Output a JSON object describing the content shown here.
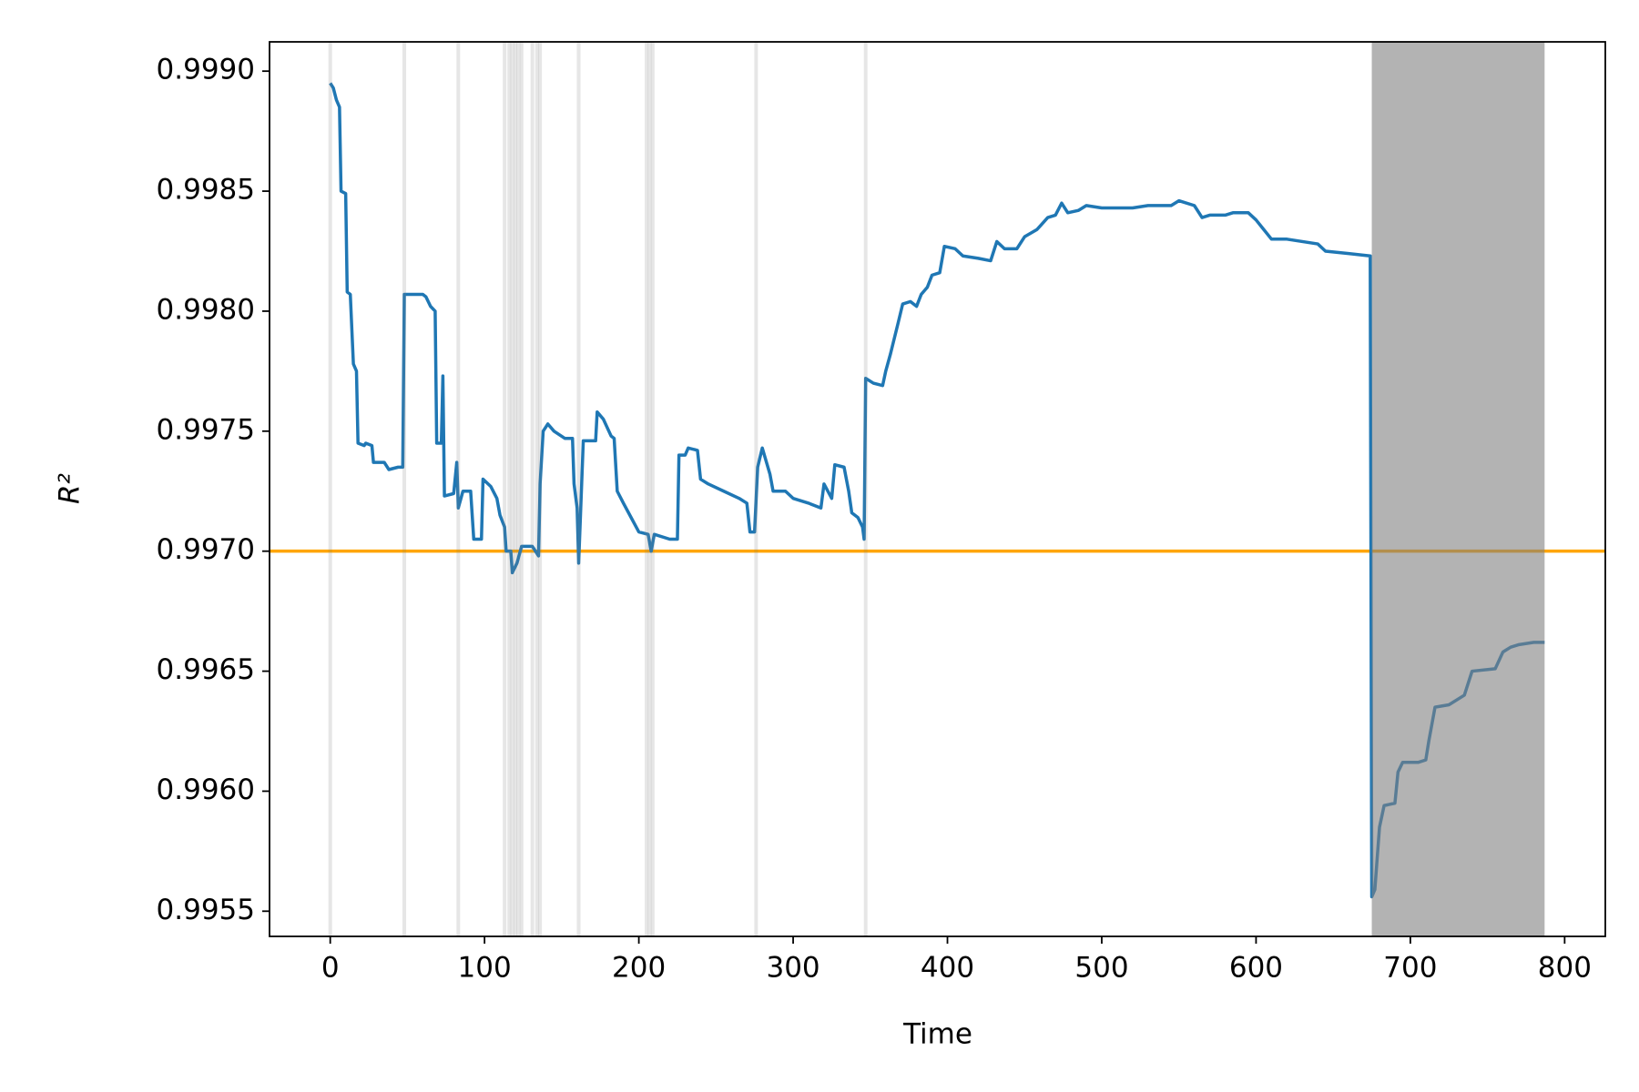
{
  "chart_data": {
    "type": "line",
    "xlabel": "Time",
    "ylabel": "R²",
    "x": [
      0,
      2,
      4,
      6,
      7,
      10,
      11,
      13,
      15,
      17,
      18,
      22,
      23,
      27,
      28,
      35,
      38,
      44,
      47,
      48,
      60,
      62,
      65,
      68,
      69,
      72,
      73,
      74,
      80,
      82,
      83,
      86,
      91,
      93,
      98,
      99,
      104,
      108,
      110,
      113,
      114,
      117,
      118,
      121,
      124,
      131,
      133,
      135,
      136,
      138,
      141,
      145,
      152,
      157,
      158,
      160,
      161,
      164,
      172,
      173,
      177,
      182,
      184,
      186,
      190,
      195,
      200,
      206,
      208,
      210,
      220,
      225,
      226,
      230,
      232,
      238,
      240,
      245,
      255,
      265,
      270,
      272,
      275,
      277,
      280,
      285,
      287,
      295,
      300,
      310,
      318,
      320,
      325,
      327,
      333,
      336,
      338,
      342,
      345,
      346,
      347,
      352,
      358,
      360,
      363,
      368,
      371,
      376,
      380,
      383,
      387,
      390,
      395,
      398,
      405,
      410,
      420,
      428,
      432,
      437,
      445,
      450,
      458,
      465,
      470,
      474,
      478,
      485,
      490,
      500,
      520,
      530,
      545,
      550,
      560,
      565,
      570,
      580,
      585,
      595,
      600,
      605,
      610,
      620,
      640,
      645,
      660,
      674,
      675,
      677,
      680,
      683,
      690,
      692,
      695,
      705,
      710,
      712,
      716,
      725,
      735,
      740,
      755,
      760,
      765,
      770,
      780,
      787
    ],
    "series": [
      {
        "color": "#1f77b4",
        "values": [
          0.99895,
          0.99893,
          0.99888,
          0.99885,
          0.9985,
          0.99849,
          0.99808,
          0.99807,
          0.99778,
          0.99775,
          0.99745,
          0.99744,
          0.99745,
          0.99744,
          0.99737,
          0.99737,
          0.99734,
          0.99735,
          0.99735,
          0.99807,
          0.99807,
          0.99806,
          0.99802,
          0.998,
          0.99745,
          0.99745,
          0.99773,
          0.99723,
          0.99724,
          0.99737,
          0.99718,
          0.99725,
          0.99725,
          0.99705,
          0.99705,
          0.9973,
          0.99727,
          0.99722,
          0.99715,
          0.9971,
          0.997,
          0.997,
          0.99691,
          0.99695,
          0.99702,
          0.99702,
          0.997,
          0.99698,
          0.99728,
          0.9975,
          0.99753,
          0.9975,
          0.99747,
          0.99747,
          0.99728,
          0.99718,
          0.99695,
          0.99746,
          0.99746,
          0.99758,
          0.99755,
          0.99748,
          0.99747,
          0.99725,
          0.9972,
          0.99714,
          0.99708,
          0.99707,
          0.997,
          0.99707,
          0.99705,
          0.99705,
          0.9974,
          0.9974,
          0.99743,
          0.99742,
          0.9973,
          0.99728,
          0.99725,
          0.99722,
          0.9972,
          0.99708,
          0.99708,
          0.99735,
          0.99743,
          0.99732,
          0.99725,
          0.99725,
          0.99722,
          0.9972,
          0.99718,
          0.99728,
          0.99722,
          0.99736,
          0.99735,
          0.99725,
          0.99716,
          0.99714,
          0.9971,
          0.99705,
          0.99772,
          0.9977,
          0.99769,
          0.99775,
          0.99782,
          0.99795,
          0.99803,
          0.99804,
          0.99802,
          0.99807,
          0.9981,
          0.99815,
          0.99816,
          0.99827,
          0.99826,
          0.99823,
          0.99822,
          0.99821,
          0.99829,
          0.99826,
          0.99826,
          0.99831,
          0.99834,
          0.99839,
          0.9984,
          0.99845,
          0.99841,
          0.99842,
          0.99844,
          0.99843,
          0.99843,
          0.99844,
          0.99844,
          0.99846,
          0.99844,
          0.99839,
          0.9984,
          0.9984,
          0.99841,
          0.99841,
          0.99838,
          0.99834,
          0.9983,
          0.9983,
          0.99828,
          0.99825,
          0.99824,
          0.99823,
          0.99556,
          0.99559,
          0.99585,
          0.99594,
          0.99595,
          0.99608,
          0.99612,
          0.99612,
          0.99613,
          0.99621,
          0.99635,
          0.99636,
          0.9964,
          0.9965,
          0.99651,
          0.99658,
          0.9966,
          0.99661,
          0.99662,
          0.99662
        ]
      }
    ],
    "hline": {
      "value": 0.997,
      "color": "#ffa500"
    },
    "vlines": [
      0,
      48,
      83,
      113,
      116,
      118,
      120,
      122,
      124,
      131,
      134,
      136,
      161,
      205,
      207,
      209,
      276,
      347
    ],
    "vspans": [
      [
        675,
        787
      ]
    ],
    "vline_color": "#808080",
    "xlim": [
      -39.35,
      826.35
    ],
    "xticks": [
      0,
      100,
      200,
      300,
      400,
      500,
      600,
      700,
      800
    ],
    "ylim": [
      0.995395,
      0.999122
    ],
    "yticks": [
      0.9955,
      {
        "value": 0.996,
        "label": "0.9960"
      },
      0.9965,
      {
        "value": 0.997,
        "label": "0.9970"
      },
      0.9975,
      {
        "value": 0.998,
        "label": "0.9980"
      },
      0.9985,
      {
        "value": 0.999,
        "label": "0.9990"
      }
    ]
  }
}
